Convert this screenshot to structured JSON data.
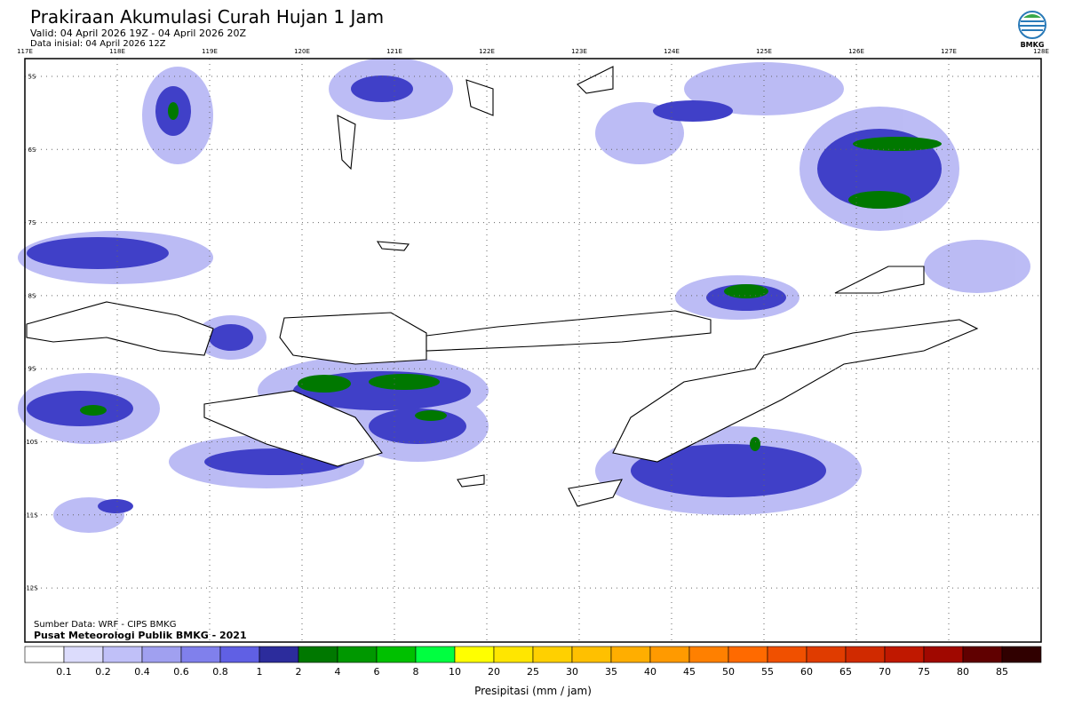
{
  "header": {
    "title": "Prakiraan Akumulasi Curah Hujan 1 Jam",
    "valid": "Valid: 04 April 2026 19Z - 04 April 2026 20Z",
    "initial": "Data inisial: 04 April 2026 12Z",
    "logo": "BMKG"
  },
  "map": {
    "lon_ticks": [
      {
        "value": 117,
        "label": "117E"
      },
      {
        "value": 118,
        "label": "118E"
      },
      {
        "value": 119,
        "label": "119E"
      },
      {
        "value": 120,
        "label": "120E"
      },
      {
        "value": 121,
        "label": "121E"
      },
      {
        "value": 122,
        "label": "122E"
      },
      {
        "value": 123,
        "label": "123E"
      },
      {
        "value": 124,
        "label": "124E"
      },
      {
        "value": 125,
        "label": "125E"
      },
      {
        "value": 126,
        "label": "126E"
      },
      {
        "value": 127,
        "label": "127E"
      },
      {
        "value": 128,
        "label": "128E"
      }
    ],
    "lat_ticks": [
      {
        "value": -5,
        "label": "5S"
      },
      {
        "value": -6,
        "label": "6S"
      },
      {
        "value": -7,
        "label": "7S"
      },
      {
        "value": -8,
        "label": "8S"
      },
      {
        "value": -9,
        "label": "9S"
      },
      {
        "value": -10,
        "label": "10S"
      },
      {
        "value": -11,
        "label": "11S"
      },
      {
        "value": -12,
        "label": "12S"
      }
    ],
    "source": "Sumber Data: WRF - CIPS BMKG",
    "credit": "Pusat Meteorologi Publik BMKG - 2021"
  },
  "colorbar": {
    "levels": [
      0.1,
      0.2,
      0.4,
      0.6,
      0.8,
      1,
      2,
      4,
      6,
      8,
      10,
      20,
      25,
      30,
      35,
      40,
      45,
      50,
      55,
      60,
      65,
      70,
      75,
      80,
      85
    ],
    "colors": [
      "#ffffff",
      "#dcdcfc",
      "#c0c0f8",
      "#a0a0f0",
      "#8080ec",
      "#6060e4",
      "#2c2c9c",
      "#007800",
      "#009800",
      "#00c000",
      "#00ff40",
      "#ffff00",
      "#ffe600",
      "#ffd000",
      "#ffc000",
      "#ffae00",
      "#ff9a00",
      "#ff8000",
      "#ff6a00",
      "#f05000",
      "#e03c00",
      "#d02a00",
      "#c01800",
      "#a00800",
      "#600000",
      "#300000"
    ],
    "label": "Presipitasi (mm / jam)"
  }
}
